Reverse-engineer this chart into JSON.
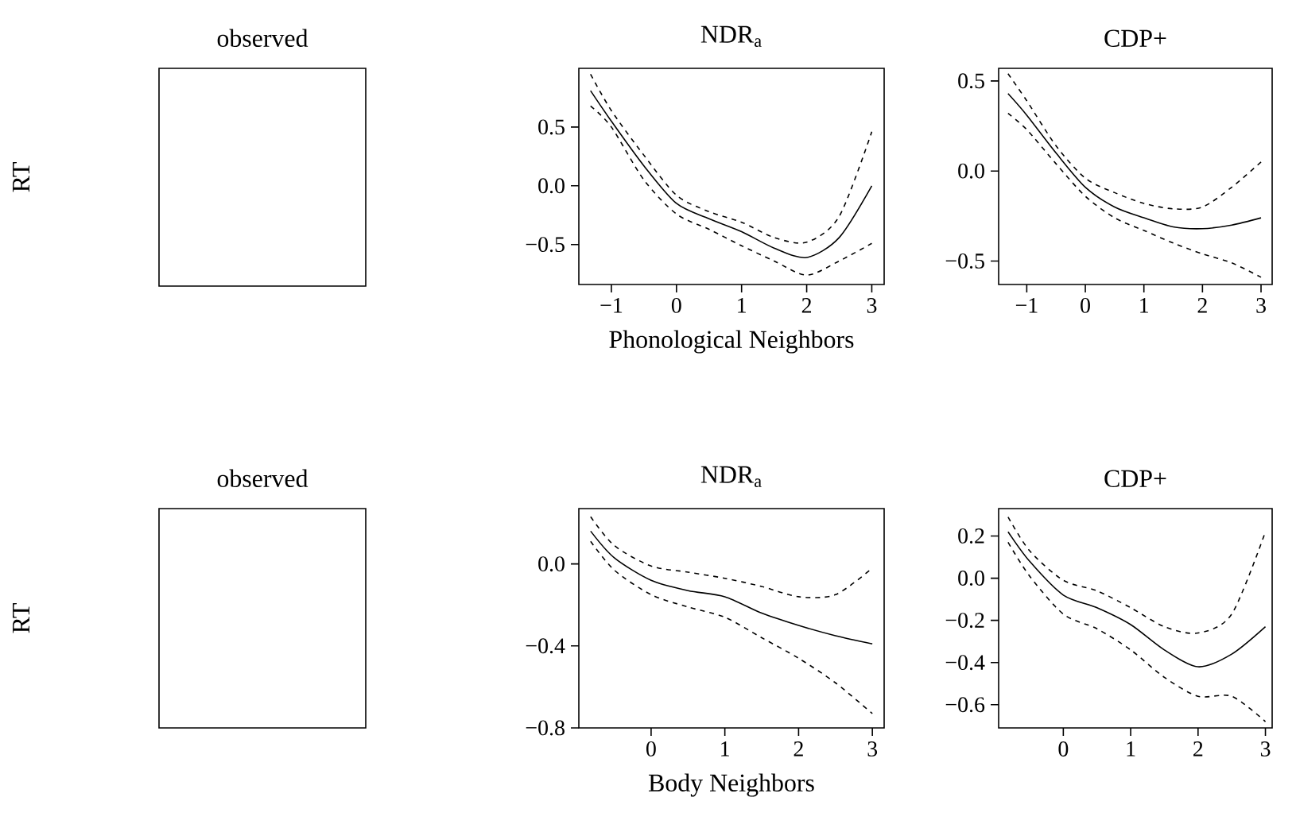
{
  "chart_data": [
    {
      "type": "other",
      "title": "observed",
      "ylabel": "RT"
    },
    {
      "type": "line",
      "title": "NDR$_{a}$",
      "xlabel": "Phonological Neighbors",
      "x": [
        -1.32,
        -1,
        -0.5,
        0,
        0.5,
        1,
        1.5,
        2,
        2.5,
        3
      ],
      "xlim": [
        -1.5,
        3.19
      ],
      "ylim": [
        -0.84,
        1.0
      ],
      "xticks": [
        {
          "value": -1,
          "label": "−1"
        },
        {
          "value": 0,
          "label": "0"
        },
        {
          "value": 1,
          "label": "1"
        },
        {
          "value": 2,
          "label": "2"
        },
        {
          "value": 3,
          "label": "3"
        }
      ],
      "yticks": [
        {
          "value": -0.5,
          "label": "−0.5"
        },
        {
          "value": 0,
          "label": "0.0"
        },
        {
          "value": 0.5,
          "label": "0.5"
        }
      ],
      "series": [
        {
          "color": "#000000",
          "line_style": "solid",
          "values": [
            0.81,
            0.55,
            0.17,
            -0.15,
            -0.28,
            -0.39,
            -0.53,
            -0.61,
            -0.44,
            0.0
          ]
        },
        {
          "color": "#000000",
          "line_style": "dashed",
          "values": [
            0.95,
            0.64,
            0.26,
            -0.08,
            -0.22,
            -0.31,
            -0.44,
            -0.48,
            -0.26,
            0.46
          ]
        },
        {
          "color": "#000000",
          "line_style": "dashed",
          "values": [
            0.68,
            0.5,
            0.05,
            -0.24,
            -0.37,
            -0.51,
            -0.64,
            -0.76,
            -0.64,
            -0.49
          ]
        }
      ]
    },
    {
      "type": "line",
      "title": "CDP+",
      "x": [
        -1.32,
        -1,
        -0.5,
        0,
        0.5,
        1,
        1.5,
        2,
        2.5,
        3
      ],
      "xlim": [
        -1.48,
        3.19
      ],
      "ylim": [
        -0.63,
        0.57
      ],
      "xticks": [
        {
          "value": -1,
          "label": "−1"
        },
        {
          "value": 0,
          "label": "0"
        },
        {
          "value": 1,
          "label": "1"
        },
        {
          "value": 2,
          "label": "2"
        },
        {
          "value": 3,
          "label": "3"
        }
      ],
      "yticks": [
        {
          "value": -0.5,
          "label": "−0.5"
        },
        {
          "value": 0,
          "label": "0.0"
        },
        {
          "value": 0.5,
          "label": "0.5"
        }
      ],
      "series": [
        {
          "color": "#000000",
          "line_style": "solid",
          "values": [
            0.43,
            0.31,
            0.1,
            -0.09,
            -0.2,
            -0.26,
            -0.31,
            -0.32,
            -0.3,
            -0.26
          ]
        },
        {
          "color": "#000000",
          "line_style": "dashed",
          "values": [
            0.54,
            0.39,
            0.14,
            -0.04,
            -0.12,
            -0.18,
            -0.21,
            -0.2,
            -0.09,
            0.05
          ]
        },
        {
          "color": "#000000",
          "line_style": "dashed",
          "values": [
            0.32,
            0.23,
            0.04,
            -0.14,
            -0.26,
            -0.33,
            -0.4,
            -0.46,
            -0.51,
            -0.59
          ]
        }
      ]
    },
    {
      "type": "other",
      "title": "observed",
      "ylabel": "RT"
    },
    {
      "type": "line",
      "title": "NDR$_{a}$",
      "xlabel": "Body Neighbors",
      "x": [
        -0.82,
        -0.5,
        0,
        0.5,
        1,
        1.5,
        2,
        2.5,
        3
      ],
      "xlim": [
        -0.98,
        3.16
      ],
      "ylim": [
        -0.8,
        0.27
      ],
      "xticks": [
        {
          "value": 0,
          "label": "0"
        },
        {
          "value": 1,
          "label": "1"
        },
        {
          "value": 2,
          "label": "2"
        },
        {
          "value": 3,
          "label": "3"
        }
      ],
      "yticks": [
        {
          "value": -0.8,
          "label": "−0.8"
        },
        {
          "value": -0.4,
          "label": "−0.4"
        },
        {
          "value": 0,
          "label": "0.0"
        }
      ],
      "series": [
        {
          "color": "#000000",
          "line_style": "solid",
          "values": [
            0.16,
            0.03,
            -0.08,
            -0.13,
            -0.16,
            -0.24,
            -0.3,
            -0.35,
            -0.39
          ]
        },
        {
          "color": "#000000",
          "line_style": "dashed",
          "values": [
            0.23,
            0.09,
            -0.01,
            -0.04,
            -0.07,
            -0.11,
            -0.16,
            -0.15,
            -0.02
          ]
        },
        {
          "color": "#000000",
          "line_style": "dashed",
          "values": [
            0.11,
            -0.03,
            -0.15,
            -0.21,
            -0.26,
            -0.36,
            -0.46,
            -0.58,
            -0.73
          ]
        }
      ]
    },
    {
      "type": "line",
      "title": "CDP+",
      "x": [
        -0.82,
        -0.5,
        0,
        0.5,
        1,
        1.5,
        2,
        2.5,
        3
      ],
      "xlim": [
        -0.96,
        3.1
      ],
      "ylim": [
        -0.71,
        0.33
      ],
      "xticks": [
        {
          "value": 0,
          "label": "0"
        },
        {
          "value": 1,
          "label": "1"
        },
        {
          "value": 2,
          "label": "2"
        },
        {
          "value": 3,
          "label": "3"
        }
      ],
      "yticks": [
        {
          "value": -0.6,
          "label": "−0.6"
        },
        {
          "value": -0.4,
          "label": "−0.4"
        },
        {
          "value": -0.2,
          "label": "−0.2"
        },
        {
          "value": 0,
          "label": "0.0"
        },
        {
          "value": 0.2,
          "label": "0.2"
        }
      ],
      "series": [
        {
          "color": "#000000",
          "line_style": "solid",
          "values": [
            0.22,
            0.08,
            -0.08,
            -0.14,
            -0.22,
            -0.34,
            -0.42,
            -0.36,
            -0.23
          ]
        },
        {
          "color": "#000000",
          "line_style": "dashed",
          "values": [
            0.29,
            0.13,
            -0.01,
            -0.06,
            -0.14,
            -0.23,
            -0.26,
            -0.17,
            0.22
          ]
        },
        {
          "color": "#000000",
          "line_style": "dashed",
          "values": [
            0.17,
            0.01,
            -0.17,
            -0.24,
            -0.34,
            -0.47,
            -0.56,
            -0.56,
            -0.68
          ]
        }
      ]
    }
  ]
}
